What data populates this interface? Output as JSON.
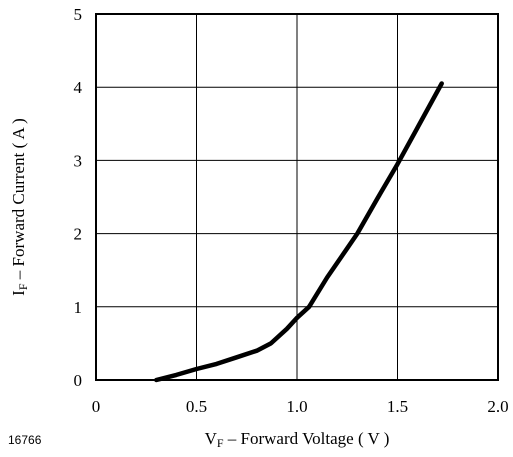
{
  "chart_data": {
    "type": "line",
    "xlim": [
      0,
      2.0
    ],
    "ylim": [
      0,
      5
    ],
    "xticks": [
      0,
      0.5,
      1.0,
      1.5,
      2.0
    ],
    "xtick_labels": [
      "0",
      "0.5",
      "1.0",
      "1.5",
      "2.0"
    ],
    "yticks": [
      0,
      1,
      2,
      3,
      4,
      5
    ],
    "ytick_labels": [
      "0",
      "1",
      "2",
      "3",
      "4",
      "5"
    ],
    "grid": true,
    "legend": "none",
    "xlabel": {
      "main": "V",
      "sub": "F",
      "rest": " – Forward Voltage ( V )"
    },
    "ylabel": {
      "main": "I",
      "sub": "F",
      "rest": " – Forward Current ( A )"
    },
    "series": [
      {
        "x": [
          0.3,
          0.4,
          0.5,
          0.6,
          0.7,
          0.8,
          0.87,
          0.95,
          1.0,
          1.06,
          1.15,
          1.25,
          1.3,
          1.4,
          1.5,
          1.6,
          1.72
        ],
        "y": [
          0.0,
          0.07,
          0.15,
          0.22,
          0.31,
          0.4,
          0.5,
          0.7,
          0.85,
          1.0,
          1.4,
          1.8,
          2.0,
          2.48,
          2.95,
          3.45,
          4.05
        ],
        "color": "#000000"
      }
    ]
  },
  "figure_id": "16766"
}
